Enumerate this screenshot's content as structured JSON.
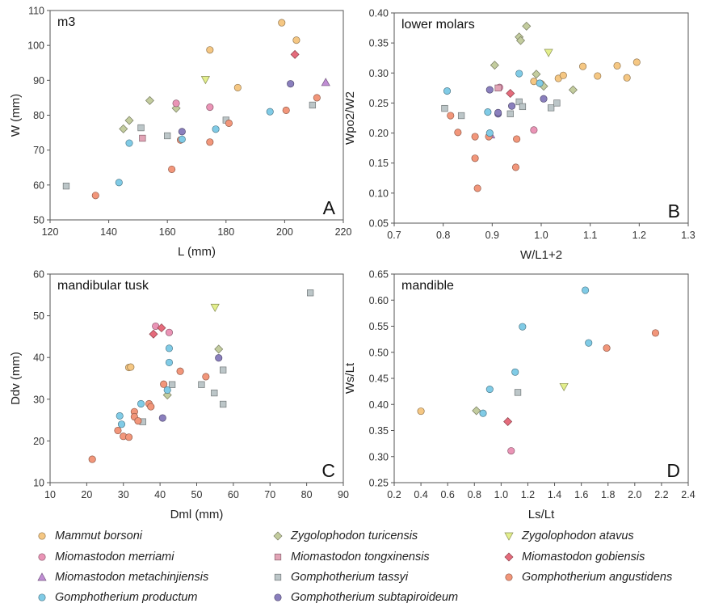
{
  "species": [
    {
      "key": "mb",
      "name": "Mammut borsoni",
      "marker": "circle",
      "color": "#f5c783"
    },
    {
      "key": "zt",
      "name": "Zygolophodon turicensis",
      "marker": "diamond",
      "color": "#c3cc9e"
    },
    {
      "key": "za",
      "name": "Zygolophodon atavus",
      "marker": "triangle-down",
      "color": "#e3ef8c"
    },
    {
      "key": "mm",
      "name": "Miomastodon merriami",
      "marker": "circle",
      "color": "#ea94b6"
    },
    {
      "key": "mt",
      "name": "Miomastodon tongxinensis",
      "marker": "square",
      "color": "#e2a4b6"
    },
    {
      "key": "mg",
      "name": "Miomastodon gobiensis",
      "marker": "diamond",
      "color": "#e56b7b"
    },
    {
      "key": "mc",
      "name": "Miomastodon metachinjiensis",
      "marker": "triangle-up",
      "color": "#c08dd4"
    },
    {
      "key": "gt",
      "name": "Gomphotherium tassyi",
      "marker": "square",
      "color": "#bcc6c8"
    },
    {
      "key": "ga",
      "name": "Gomphotherium angustidens",
      "marker": "circle",
      "color": "#f2967a"
    },
    {
      "key": "gp",
      "name": "Gomphotherium productum",
      "marker": "circle",
      "color": "#80cbe6"
    },
    {
      "key": "gs",
      "name": "Gomphotherium subtapiroideum",
      "marker": "circle",
      "color": "#8a7fbd"
    }
  ],
  "chart_data": [
    {
      "type": "scatter",
      "panel": "A",
      "title": "m3",
      "xlabel": "L (mm)",
      "ylabel": "W (mm)",
      "xlim": [
        120,
        220
      ],
      "ylim": [
        50,
        110
      ],
      "xticks": [
        "120",
        "140",
        "160",
        "180",
        "200",
        "220"
      ],
      "yticks": [
        "50",
        "60",
        "70",
        "80",
        "90",
        "100",
        "110"
      ],
      "grid": false,
      "series": [
        {
          "key": "mb",
          "points": [
            [
              174.5,
              98.7
            ],
            [
              184,
              87.9
            ],
            [
              199,
              106.5
            ],
            [
              204,
              101.5
            ]
          ]
        },
        {
          "key": "zt",
          "points": [
            [
              145,
              76.1
            ],
            [
              147,
              78.5
            ],
            [
              154,
              84.2
            ],
            [
              163,
              82.0
            ]
          ]
        },
        {
          "key": "za",
          "points": [
            [
              173,
              90.2
            ]
          ]
        },
        {
          "key": "mm",
          "points": [
            [
              163,
              83.4
            ],
            [
              174.5,
              82.3
            ]
          ]
        },
        {
          "key": "mt",
          "points": [
            [
              151.5,
              73.4
            ]
          ]
        },
        {
          "key": "mg",
          "points": [
            [
              203.5,
              97.4
            ]
          ]
        },
        {
          "key": "mc",
          "points": [
            [
              214,
              89.4
            ]
          ]
        },
        {
          "key": "gt",
          "points": [
            [
              125.5,
              59.7
            ],
            [
              151,
              76.4
            ],
            [
              160,
              74.1
            ],
            [
              180,
              78.6
            ],
            [
              209.5,
              82.9
            ]
          ]
        },
        {
          "key": "ga",
          "points": [
            [
              135.5,
              57.0
            ],
            [
              161.5,
              64.5
            ],
            [
              164.5,
              72.9
            ],
            [
              174.5,
              72.3
            ],
            [
              181,
              77.7
            ],
            [
              200.5,
              81.4
            ],
            [
              211,
              85.0
            ]
          ]
        },
        {
          "key": "gp",
          "points": [
            [
              143.5,
              60.7
            ],
            [
              147,
              72.0
            ],
            [
              165,
              73.1
            ],
            [
              176.5,
              76.0
            ],
            [
              195,
              81.0
            ]
          ]
        },
        {
          "key": "gs",
          "points": [
            [
              165,
              75.3
            ],
            [
              202,
              89.0
            ]
          ]
        }
      ],
      "panel_label": "A"
    },
    {
      "type": "scatter",
      "panel": "B",
      "title": "lower molars",
      "xlabel": "W/L1+2",
      "ylabel": "Wpo2/W2",
      "xlim": [
        0.7,
        1.3
      ],
      "ylim": [
        0.05,
        0.4
      ],
      "xticks": [
        "0.7",
        "0.8",
        "0.9",
        "1.0",
        "1.1",
        "1.2",
        "1.3"
      ],
      "yticks": [
        "0.05",
        "0.10",
        "0.15",
        "0.20",
        "0.25",
        "0.30",
        "0.35",
        "0.40"
      ],
      "grid": false,
      "series": [
        {
          "key": "mb",
          "points": [
            [
              0.985,
              0.286
            ],
            [
              1.0,
              0.282
            ],
            [
              1.035,
              0.291
            ],
            [
              1.045,
              0.296
            ],
            [
              1.085,
              0.311
            ],
            [
              1.115,
              0.295
            ],
            [
              1.155,
              0.312
            ],
            [
              1.175,
              0.292
            ],
            [
              1.195,
              0.318
            ]
          ]
        },
        {
          "key": "zt",
          "points": [
            [
              0.905,
              0.313
            ],
            [
              0.955,
              0.36
            ],
            [
              0.958,
              0.354
            ],
            [
              0.97,
              0.378
            ],
            [
              0.99,
              0.298
            ],
            [
              1.005,
              0.278
            ],
            [
              1.065,
              0.272
            ]
          ]
        },
        {
          "key": "za",
          "points": [
            [
              1.015,
              0.334
            ]
          ]
        },
        {
          "key": "mm",
          "points": [
            [
              0.915,
              0.276
            ],
            [
              0.985,
              0.205
            ]
          ]
        },
        {
          "key": "mt",
          "points": [
            [
              0.912,
              0.275
            ]
          ]
        },
        {
          "key": "mg",
          "points": [
            [
              0.937,
              0.266
            ]
          ]
        },
        {
          "key": "mc",
          "points": [
            [
              0.897,
              0.197
            ]
          ]
        },
        {
          "key": "gt",
          "points": [
            [
              0.803,
              0.241
            ],
            [
              0.837,
              0.229
            ],
            [
              0.937,
              0.232
            ],
            [
              0.955,
              0.252
            ],
            [
              0.962,
              0.244
            ],
            [
              1.02,
              0.242
            ],
            [
              1.032,
              0.25
            ]
          ]
        },
        {
          "key": "ga",
          "points": [
            [
              0.815,
              0.229
            ],
            [
              0.83,
              0.201
            ],
            [
              0.865,
              0.194
            ],
            [
              0.865,
              0.158
            ],
            [
              0.87,
              0.108
            ],
            [
              0.893,
              0.194
            ],
            [
              0.948,
              0.143
            ],
            [
              0.95,
              0.19
            ]
          ]
        },
        {
          "key": "gp",
          "points": [
            [
              0.808,
              0.27
            ],
            [
              0.891,
              0.235
            ],
            [
              0.895,
              0.2
            ],
            [
              0.955,
              0.299
            ],
            [
              0.997,
              0.283
            ]
          ]
        },
        {
          "key": "gs",
          "points": [
            [
              0.895,
              0.272
            ],
            [
              0.912,
              0.232
            ],
            [
              0.912,
              0.234
            ],
            [
              0.94,
              0.245
            ],
            [
              1.005,
              0.257
            ]
          ]
        }
      ],
      "panel_label": "B"
    },
    {
      "type": "scatter",
      "panel": "C",
      "title": "mandibular tusk",
      "xlabel": "Dml (mm)",
      "ylabel": "Ddv (mm)",
      "xlim": [
        10,
        90
      ],
      "ylim": [
        10,
        60
      ],
      "xticks": [
        "10",
        "20",
        "30",
        "40",
        "50",
        "60",
        "70",
        "80",
        "90"
      ],
      "yticks": [
        "10",
        "20",
        "30",
        "40",
        "50",
        "60"
      ],
      "grid": false,
      "series": [
        {
          "key": "mb",
          "points": [
            [
              31.5,
              37.6
            ],
            [
              32,
              37.7
            ]
          ]
        },
        {
          "key": "zt",
          "points": [
            [
              42,
              31.0
            ],
            [
              56,
              42.0
            ]
          ]
        },
        {
          "key": "za",
          "points": [
            [
              55,
              52.0
            ]
          ]
        },
        {
          "key": "mm",
          "points": [
            [
              38.8,
              47.5
            ],
            [
              42.5,
              46.0
            ]
          ]
        },
        {
          "key": "mt",
          "points": []
        },
        {
          "key": "mg",
          "points": [
            [
              38.2,
              45.6
            ],
            [
              40.4,
              47.1
            ]
          ]
        },
        {
          "key": "mc",
          "points": []
        },
        {
          "key": "gt",
          "points": [
            [
              35.3,
              24.6
            ],
            [
              43.3,
              33.5
            ],
            [
              51.3,
              33.5
            ],
            [
              54.8,
              31.5
            ],
            [
              57.2,
              37.0
            ],
            [
              57.2,
              28.8
            ],
            [
              81.0,
              55.5
            ]
          ]
        },
        {
          "key": "ga",
          "points": [
            [
              21.5,
              15.6
            ],
            [
              28.5,
              22.5
            ],
            [
              30.0,
              21.1
            ],
            [
              31.5,
              20.9
            ],
            [
              33.0,
              27.0
            ],
            [
              33.0,
              25.8
            ],
            [
              34.0,
              24.8
            ],
            [
              37.0,
              28.9
            ],
            [
              37.5,
              28.2
            ],
            [
              41.0,
              33.6
            ],
            [
              45.5,
              36.7
            ],
            [
              52.5,
              35.4
            ]
          ]
        },
        {
          "key": "gp",
          "points": [
            [
              29.0,
              26.0
            ],
            [
              29.5,
              24.0
            ],
            [
              34.8,
              28.9
            ],
            [
              42.0,
              32.2
            ],
            [
              42.5,
              42.2
            ],
            [
              42.5,
              38.8
            ]
          ]
        },
        {
          "key": "gs",
          "points": [
            [
              40.7,
              25.5
            ],
            [
              56.0,
              39.9
            ]
          ]
        }
      ],
      "panel_label": "C"
    },
    {
      "type": "scatter",
      "panel": "D",
      "title": "mandible",
      "xlabel": "Ls/Lt",
      "ylabel": "Ws/Lt",
      "xlim": [
        0.2,
        2.4
      ],
      "ylim": [
        0.25,
        0.65
      ],
      "xticks": [
        "0.2",
        "0.4",
        "0.6",
        "0.8",
        "1.0",
        "1.2",
        "1.4",
        "1.6",
        "1.8",
        "2.0",
        "2.2",
        "2.4"
      ],
      "yticks": [
        "0.25",
        "0.30",
        "0.35",
        "0.40",
        "0.45",
        "0.50",
        "0.55",
        "0.60",
        "0.65"
      ],
      "grid": false,
      "series": [
        {
          "key": "mb",
          "points": [
            [
              0.4,
              0.387
            ]
          ]
        },
        {
          "key": "zt",
          "points": [
            [
              0.815,
              0.388
            ]
          ]
        },
        {
          "key": "za",
          "points": [
            [
              1.47,
              0.434
            ]
          ]
        },
        {
          "key": "mm",
          "points": [
            [
              1.075,
              0.311
            ]
          ]
        },
        {
          "key": "mt",
          "points": []
        },
        {
          "key": "mg",
          "points": [
            [
              1.05,
              0.367
            ]
          ]
        },
        {
          "key": "mc",
          "points": []
        },
        {
          "key": "gt",
          "points": [
            [
              1.125,
              0.423
            ]
          ]
        },
        {
          "key": "ga",
          "points": [
            [
              1.79,
              0.508
            ],
            [
              2.155,
              0.537
            ]
          ]
        },
        {
          "key": "gp",
          "points": [
            [
              0.865,
              0.383
            ],
            [
              0.915,
              0.429
            ],
            [
              1.105,
              0.462
            ],
            [
              1.16,
              0.549
            ],
            [
              1.63,
              0.619
            ],
            [
              1.655,
              0.518
            ]
          ]
        },
        {
          "key": "gs",
          "points": []
        }
      ],
      "panel_label": "D"
    }
  ]
}
